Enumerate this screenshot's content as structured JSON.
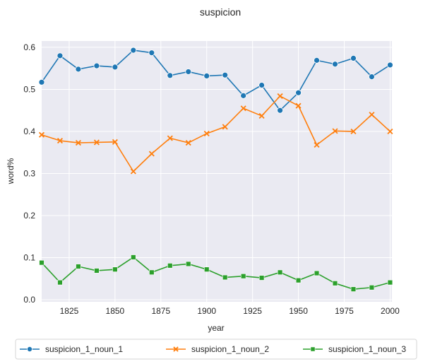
{
  "chart_data": {
    "type": "line",
    "title": "suspicion",
    "xlabel": "year",
    "ylabel": "word%",
    "xlim": [
      1810,
      2001
    ],
    "ylim": [
      -0.005,
      0.615
    ],
    "xticks": [
      1825,
      1850,
      1875,
      1900,
      1925,
      1950,
      1975,
      2000
    ],
    "yticks": [
      0.0,
      0.1,
      0.2,
      0.3,
      0.4,
      0.5,
      0.6
    ],
    "xtick_labels": [
      "1825",
      "1850",
      "1875",
      "1900",
      "1925",
      "1950",
      "1975",
      "2000"
    ],
    "ytick_labels": [
      "0.0",
      "0.1",
      "0.2",
      "0.3",
      "0.4",
      "0.5",
      "0.6"
    ],
    "grid": true,
    "legend_position": "bottom-center",
    "x": [
      1810,
      1820,
      1830,
      1840,
      1850,
      1860,
      1870,
      1880,
      1890,
      1900,
      1910,
      1920,
      1930,
      1940,
      1950,
      1960,
      1970,
      1980,
      1990,
      2000
    ],
    "series": [
      {
        "name": "suspicion_1_noun_1",
        "color": "#1f77b4",
        "marker": "circle",
        "values": [
          0.517,
          0.58,
          0.548,
          0.556,
          0.553,
          0.593,
          0.587,
          0.533,
          0.542,
          0.532,
          0.534,
          0.485,
          0.51,
          0.45,
          0.492,
          0.569,
          0.56,
          0.574,
          0.53,
          0.558
        ]
      },
      {
        "name": "suspicion_1_noun_2",
        "color": "#ff7f0e",
        "marker": "x",
        "values": [
          0.392,
          0.378,
          0.373,
          0.374,
          0.375,
          0.305,
          0.347,
          0.384,
          0.373,
          0.395,
          0.411,
          0.455,
          0.437,
          0.484,
          0.461,
          0.368,
          0.401,
          0.4,
          0.44,
          0.4
        ]
      },
      {
        "name": "suspicion_1_noun_3",
        "color": "#2ca02c",
        "marker": "square",
        "values": [
          0.088,
          0.041,
          0.079,
          0.069,
          0.072,
          0.101,
          0.065,
          0.081,
          0.085,
          0.072,
          0.053,
          0.056,
          0.052,
          0.065,
          0.046,
          0.063,
          0.039,
          0.025,
          0.029,
          0.041
        ]
      }
    ]
  }
}
